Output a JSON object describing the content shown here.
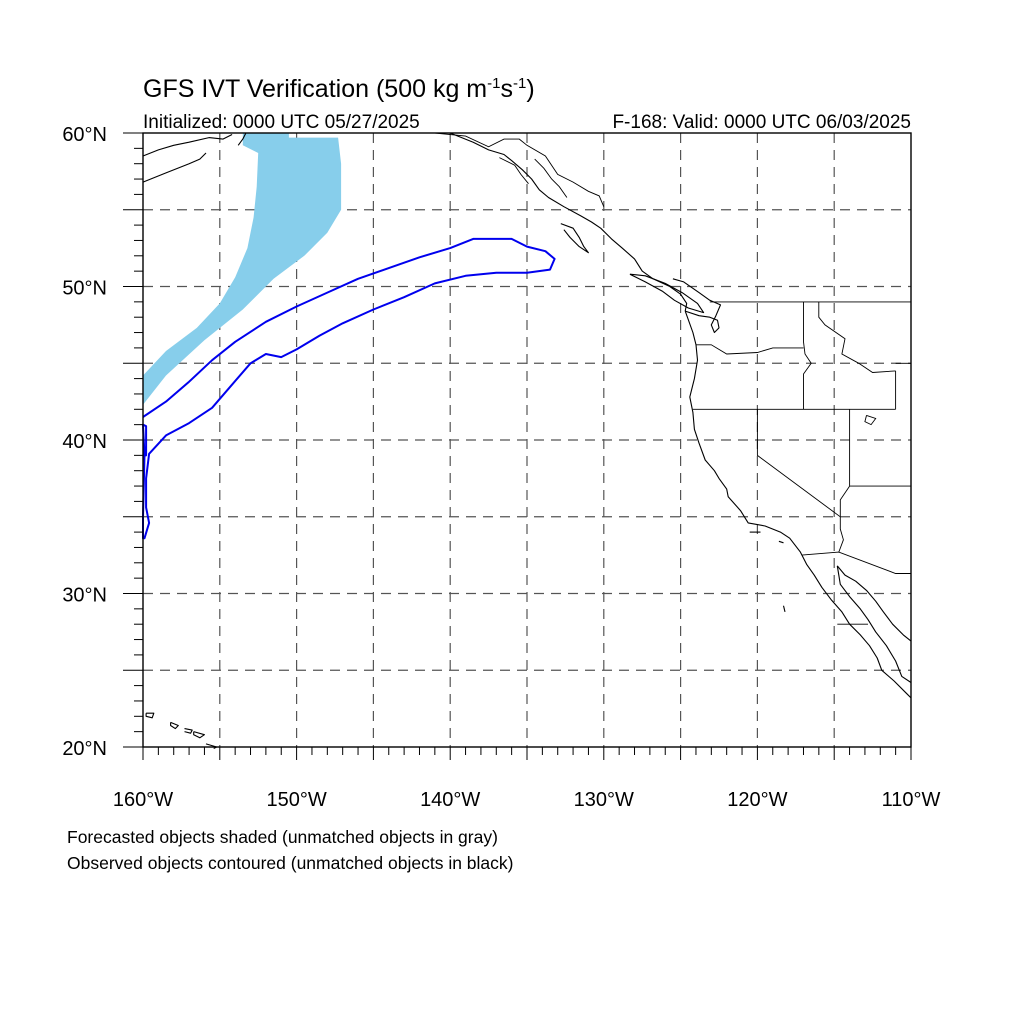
{
  "title": {
    "main": "GFS IVT Verification (500 kg m",
    "sup1": "-1",
    "mid": "s",
    "sup2": "-1",
    "end": ")"
  },
  "subtitle_left": "Initialized: 0000 UTC 05/27/2025",
  "subtitle_right": "F-168: Valid: 0000 UTC 06/03/2025",
  "map": {
    "lon_range": [
      -160,
      -110
    ],
    "lat_range": [
      20,
      60
    ],
    "lon_ticks": [
      {
        "value": -160,
        "label": "160°W"
      },
      {
        "value": -150,
        "label": "150°W"
      },
      {
        "value": -140,
        "label": "140°W"
      },
      {
        "value": -130,
        "label": "130°W"
      },
      {
        "value": -120,
        "label": "120°W"
      },
      {
        "value": -110,
        "label": "110°W"
      }
    ],
    "lat_ticks": [
      {
        "value": 60,
        "label": "60°N"
      },
      {
        "value": 50,
        "label": "50°N"
      },
      {
        "value": 40,
        "label": "40°N"
      },
      {
        "value": 30,
        "label": "30°N"
      },
      {
        "value": 20,
        "label": "20°N"
      }
    ],
    "grid_lon": [
      -155,
      -150,
      -145,
      -140,
      -135,
      -130,
      -125,
      -120,
      -115
    ],
    "grid_lat": [
      25,
      30,
      35,
      40,
      45,
      50,
      55
    ],
    "grid": true,
    "colors": {
      "forecast_shading": "#87ceeb",
      "observed_contour": "#0000ee",
      "coastline": "#000000",
      "grid": "#555555"
    }
  },
  "objects": {
    "forecast_shaded": {
      "color": "#87ceeb",
      "outline": [
        [
          -153.5,
          60
        ],
        [
          -150.5,
          60
        ],
        [
          -150.5,
          59.7
        ],
        [
          -147.3,
          59.7
        ],
        [
          -147.1,
          58
        ],
        [
          -147.1,
          55
        ],
        [
          -148,
          53.5
        ],
        [
          -149.5,
          52
        ],
        [
          -151.5,
          50.5
        ],
        [
          -153.5,
          48.5
        ],
        [
          -156,
          46.5
        ],
        [
          -158.5,
          44.2
        ],
        [
          -160,
          42.3
        ],
        [
          -160,
          44.2
        ],
        [
          -158.5,
          45.8
        ],
        [
          -156.5,
          47.3
        ],
        [
          -155,
          48.9
        ],
        [
          -154,
          50.6
        ],
        [
          -153.2,
          52.5
        ],
        [
          -152.8,
          54.5
        ],
        [
          -152.6,
          56.5
        ],
        [
          -152.5,
          58.7
        ],
        [
          -153.5,
          59.2
        ]
      ]
    },
    "observed_contour": {
      "color": "#0000ee",
      "outline": [
        [
          -160,
          41.5
        ],
        [
          -158.5,
          42.5
        ],
        [
          -157,
          43.8
        ],
        [
          -155.5,
          45.2
        ],
        [
          -154,
          46.4
        ],
        [
          -152,
          47.7
        ],
        [
          -150,
          48.7
        ],
        [
          -148,
          49.6
        ],
        [
          -146,
          50.5
        ],
        [
          -144,
          51.2
        ],
        [
          -142,
          51.9
        ],
        [
          -140,
          52.5
        ],
        [
          -138.5,
          53.1
        ],
        [
          -136,
          53.1
        ],
        [
          -135,
          52.6
        ],
        [
          -133.8,
          52.3
        ],
        [
          -133.2,
          51.8
        ],
        [
          -133.5,
          51.1
        ],
        [
          -135,
          50.9
        ],
        [
          -137,
          50.9
        ],
        [
          -139,
          50.7
        ],
        [
          -141,
          50.2
        ],
        [
          -143,
          49.3
        ],
        [
          -145,
          48.5
        ],
        [
          -147,
          47.6
        ],
        [
          -148.5,
          46.8
        ],
        [
          -150,
          45.9
        ],
        [
          -151,
          45.4
        ],
        [
          -152,
          45.6
        ],
        [
          -153,
          45.0
        ],
        [
          -154.3,
          43.5
        ],
        [
          -155.5,
          42.1
        ],
        [
          -157,
          41.1
        ],
        [
          -158.5,
          40.3
        ],
        [
          -159.6,
          39.1
        ],
        [
          -159.8,
          37.5
        ],
        [
          -159.8,
          35.6
        ],
        [
          -159.6,
          34.6
        ],
        [
          -159.9,
          33.6
        ],
        [
          -160,
          33.6
        ],
        [
          -160,
          35.0
        ],
        [
          -159.9,
          39.0
        ],
        [
          -160,
          41.0
        ],
        [
          -159.8,
          40.9
        ],
        [
          -159.8,
          39.0
        ],
        [
          -160,
          39.0
        ]
      ]
    }
  },
  "footnotes": [
    "Forecasted objects shaded (unmatched objects in gray)",
    "Observed objects contoured (unmatched objects in black)"
  ]
}
